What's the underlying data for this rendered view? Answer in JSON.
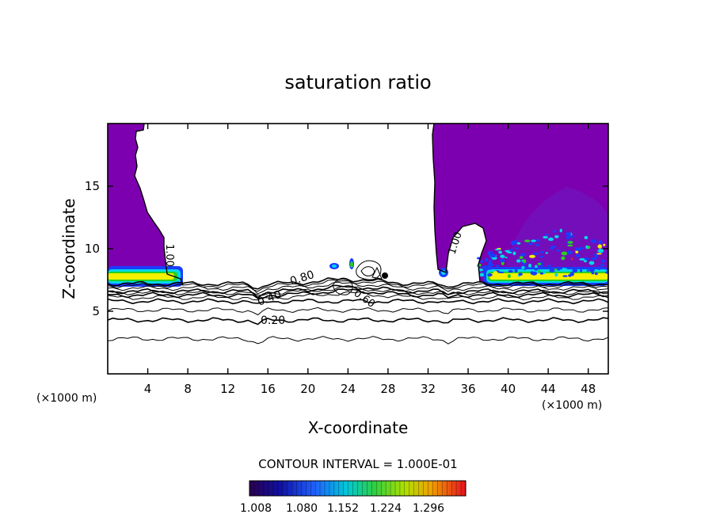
{
  "title": "saturation ratio",
  "chart_data": {
    "type": "contour",
    "title": "saturation ratio",
    "xlabel": "X-coordinate",
    "ylabel": "Z-coordinate",
    "x_unit_left": "(×1000 m)",
    "x_unit_right": "(×1000 m)",
    "xlim": [
      0,
      50
    ],
    "ylim": [
      0,
      20
    ],
    "x_ticks": [
      4,
      8,
      12,
      16,
      20,
      24,
      28,
      32,
      36,
      40,
      44,
      48
    ],
    "y_ticks": [
      5,
      10,
      15
    ],
    "contour_levels": [
      {
        "value": 0.2,
        "label": "0.20",
        "y_mean": 4.3
      },
      {
        "value": 0.4,
        "label": "0.40",
        "y_mean": 5.8
      },
      {
        "value": 0.6,
        "label": "0.60",
        "y_mean": 6.3
      },
      {
        "value": 0.8,
        "label": "0.80",
        "y_mean": 6.6
      },
      {
        "value": 1.0,
        "label": "1.00",
        "y_mean": 7.2
      }
    ],
    "extra_contours_y": [
      2.8,
      5.1,
      6.1,
      6.5,
      6.85,
      7.05
    ],
    "contour_interval_text": "CONTOUR INTERVAL = 1.000E-01",
    "colorbar": {
      "min": 1.008,
      "max": 1.32,
      "tick_labels": [
        "1.008",
        "1.080",
        "1.152",
        "1.224",
        "1.296"
      ]
    },
    "colors": {
      "supersaturated_fill": "#7d00b0",
      "band_blue": "#1a3cff",
      "band_cyan": "#00d8e8",
      "band_green": "#28d020",
      "band_yellow": "#f4f000",
      "hot_red": "#e82020",
      "text": "#000000"
    }
  }
}
